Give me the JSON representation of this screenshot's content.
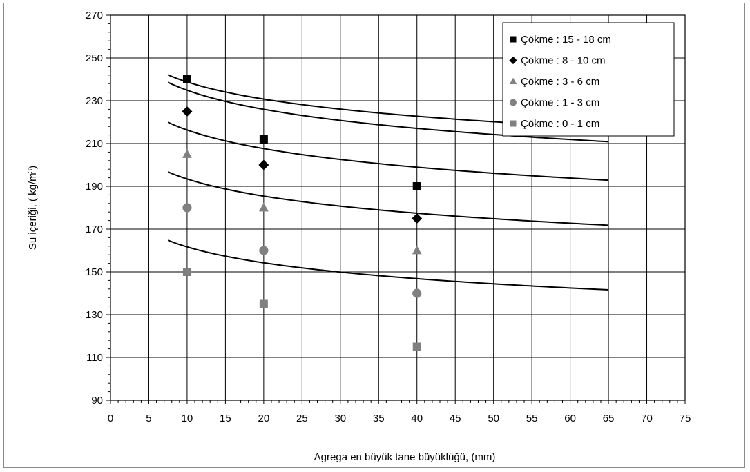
{
  "chart_data": {
    "type": "scatter",
    "title": "",
    "xlabel": "Agrega en büyük tane büyüklüğü, (mm)",
    "ylabel": "Su içeriği, ( kg/m",
    "ylabel_sup": "3",
    "ylabel_tail": ")",
    "xlim": [
      0,
      75
    ],
    "ylim": [
      90,
      270
    ],
    "x_ticks": [
      "0",
      "5",
      "10",
      "15",
      "20",
      "25",
      "30",
      "35",
      "40",
      "45",
      "50",
      "55",
      "60",
      "65",
      "70",
      "75"
    ],
    "y_ticks": [
      "90",
      "110",
      "130",
      "150",
      "170",
      "190",
      "210",
      "230",
      "250",
      "270"
    ],
    "grid": true,
    "legend_position": "top-right",
    "series": [
      {
        "name": "Çökme : 15 - 18 cm",
        "marker": "square",
        "color": "#000000",
        "x": [
          10,
          20,
          40
        ],
        "y": [
          240,
          212,
          190
        ],
        "curve_x": [
          7.5,
          65
        ],
        "curve_coef": [
          265.4,
          -11.56
        ]
      },
      {
        "name": "Çökme : 8 - 10 cm",
        "marker": "diamond",
        "color": "#000000",
        "x": [
          10,
          20,
          40
        ],
        "y": [
          225,
          200,
          175
        ],
        "curve_x": [
          7.5,
          65
        ],
        "curve_coef": [
          264.5,
          -12.85
        ]
      },
      {
        "name": "Çökme : 3 - 6 cm",
        "marker": "triangle",
        "color": "#808080",
        "x": [
          10,
          20,
          40
        ],
        "y": [
          205,
          180,
          160
        ],
        "curve_x": [
          7.5,
          65
        ],
        "curve_coef": [
          245.2,
          -12.54
        ]
      },
      {
        "name": "Çökme : 1 - 3 cm",
        "marker": "circle",
        "color": "#808080",
        "x": [
          10,
          20,
          40
        ],
        "y": [
          180,
          160,
          140
        ],
        "curve_x": [
          7.5,
          65
        ],
        "curve_coef": [
          220.0,
          -11.54
        ]
      },
      {
        "name": "Çökme : 0 - 1 cm",
        "marker": "square",
        "color": "#808080",
        "x": [
          10,
          20,
          40
        ],
        "y": [
          150,
          135,
          115
        ],
        "curve_x": [
          7.5,
          65
        ],
        "curve_coef": [
          186.4,
          -10.73
        ]
      }
    ]
  }
}
